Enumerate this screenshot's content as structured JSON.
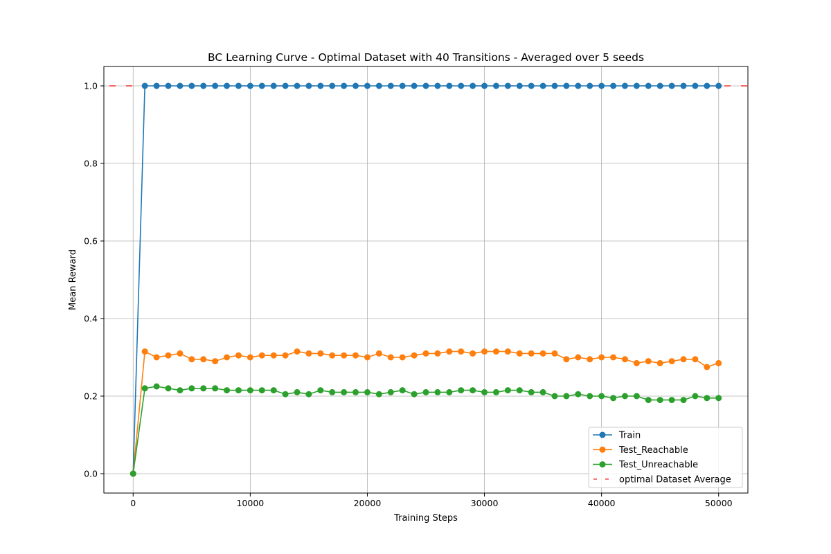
{
  "chart_data": {
    "type": "line",
    "title": "BC Learning Curve - Optimal Dataset with 40 Transitions - Averaged over 5 seeds",
    "xlabel": "Training Steps",
    "ylabel": "Mean Reward",
    "xlim": [
      -2500,
      52500
    ],
    "ylim": [
      -0.05,
      1.05
    ],
    "xticks": [
      0,
      10000,
      20000,
      30000,
      40000,
      50000
    ],
    "xtick_labels": [
      "0",
      "10000",
      "20000",
      "30000",
      "40000",
      "50000"
    ],
    "yticks": [
      0.0,
      0.2,
      0.4,
      0.6,
      0.8,
      1.0
    ],
    "ytick_labels": [
      "0.0",
      "0.2",
      "0.4",
      "0.6",
      "0.8",
      "1.0"
    ],
    "grid": true,
    "legend_position": "bottom-right",
    "x": [
      0,
      1000,
      2000,
      3000,
      4000,
      5000,
      6000,
      7000,
      8000,
      9000,
      10000,
      11000,
      12000,
      13000,
      14000,
      15000,
      16000,
      17000,
      18000,
      19000,
      20000,
      21000,
      22000,
      23000,
      24000,
      25000,
      26000,
      27000,
      28000,
      29000,
      30000,
      31000,
      32000,
      33000,
      34000,
      35000,
      36000,
      37000,
      38000,
      39000,
      40000,
      41000,
      42000,
      43000,
      44000,
      45000,
      46000,
      47000,
      48000,
      49000,
      50000
    ],
    "series": [
      {
        "name": "Train",
        "color": "#1f77b4",
        "marker": "circle",
        "values": [
          0.0,
          1.0,
          1.0,
          1.0,
          1.0,
          1.0,
          1.0,
          1.0,
          1.0,
          1.0,
          1.0,
          1.0,
          1.0,
          1.0,
          1.0,
          1.0,
          1.0,
          1.0,
          1.0,
          1.0,
          1.0,
          1.0,
          1.0,
          1.0,
          1.0,
          1.0,
          1.0,
          1.0,
          1.0,
          1.0,
          1.0,
          1.0,
          1.0,
          1.0,
          1.0,
          1.0,
          1.0,
          1.0,
          1.0,
          1.0,
          1.0,
          1.0,
          1.0,
          1.0,
          1.0,
          1.0,
          1.0,
          1.0,
          1.0,
          1.0,
          1.0
        ]
      },
      {
        "name": "Test_Reachable",
        "color": "#ff7f0e",
        "marker": "circle",
        "values": [
          0.0,
          0.315,
          0.3,
          0.305,
          0.31,
          0.295,
          0.295,
          0.29,
          0.3,
          0.305,
          0.3,
          0.305,
          0.305,
          0.305,
          0.315,
          0.31,
          0.31,
          0.305,
          0.305,
          0.305,
          0.3,
          0.31,
          0.3,
          0.3,
          0.305,
          0.31,
          0.31,
          0.315,
          0.315,
          0.31,
          0.315,
          0.315,
          0.315,
          0.31,
          0.31,
          0.31,
          0.31,
          0.295,
          0.3,
          0.295,
          0.3,
          0.3,
          0.295,
          0.285,
          0.29,
          0.285,
          0.29,
          0.295,
          0.295,
          0.275,
          0.285
        ]
      },
      {
        "name": "Test_Unreachable",
        "color": "#2ca02c",
        "marker": "circle",
        "values": [
          0.0,
          0.22,
          0.225,
          0.22,
          0.215,
          0.22,
          0.22,
          0.22,
          0.215,
          0.215,
          0.215,
          0.215,
          0.215,
          0.205,
          0.21,
          0.205,
          0.215,
          0.21,
          0.21,
          0.21,
          0.21,
          0.205,
          0.21,
          0.215,
          0.205,
          0.21,
          0.21,
          0.21,
          0.215,
          0.215,
          0.21,
          0.21,
          0.215,
          0.215,
          0.21,
          0.21,
          0.2,
          0.2,
          0.205,
          0.2,
          0.2,
          0.195,
          0.2,
          0.2,
          0.19,
          0.19,
          0.19,
          0.19,
          0.2,
          0.195,
          0.195
        ]
      }
    ],
    "reference_lines": [
      {
        "name": "optimal Dataset Average",
        "y": 1.0,
        "color": "#ff0000",
        "style": "dashed"
      }
    ]
  }
}
